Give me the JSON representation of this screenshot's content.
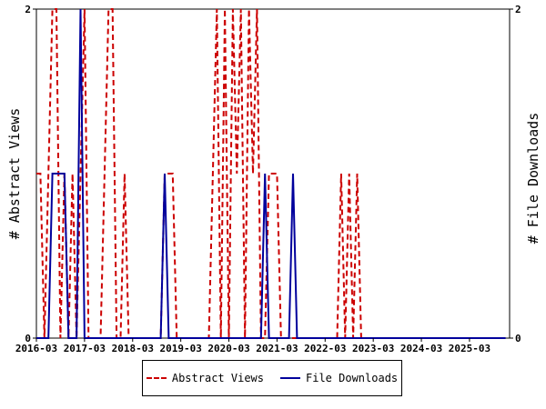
{
  "chart_data": {
    "type": "line",
    "y_left_label": "# Abstract Views",
    "y_right_label": "# File Downloads",
    "ylim": [
      0,
      2
    ],
    "y_ticks_left": [
      "0",
      "2"
    ],
    "y_ticks_right": [
      "0",
      "2"
    ],
    "x_tick_labels": [
      "2016-03",
      "2017-03",
      "2018-03",
      "2019-03",
      "2020-03",
      "2021-03",
      "2022-03",
      "2023-03",
      "2024-03",
      "2025-03"
    ],
    "x_range": [
      "2016-03",
      "2025-12"
    ],
    "grid": false,
    "legend_position": "bottom",
    "series": [
      {
        "name": "Abstract Views",
        "color": "#cc0000",
        "style": "dashed",
        "points": [
          [
            "2016-03",
            1
          ],
          [
            "2016-04",
            1
          ],
          [
            "2016-05",
            0
          ],
          [
            "2016-06",
            1
          ],
          [
            "2016-07",
            2
          ],
          [
            "2016-08",
            2
          ],
          [
            "2016-09",
            0
          ],
          [
            "2016-10",
            1
          ],
          [
            "2016-11",
            0
          ],
          [
            "2016-12",
            1
          ],
          [
            "2017-01",
            0
          ],
          [
            "2017-02",
            1
          ],
          [
            "2017-03",
            2
          ],
          [
            "2017-04",
            0
          ],
          [
            "2017-05",
            0
          ],
          [
            "2017-06",
            0
          ],
          [
            "2017-07",
            0
          ],
          [
            "2017-08",
            1
          ],
          [
            "2017-09",
            2
          ],
          [
            "2017-10",
            2
          ],
          [
            "2017-11",
            0
          ],
          [
            "2017-12",
            0
          ],
          [
            "2018-01",
            1
          ],
          [
            "2018-02",
            0
          ],
          [
            "2018-03",
            0
          ],
          [
            "2018-04",
            0
          ],
          [
            "2018-05",
            0
          ],
          [
            "2018-06",
            0
          ],
          [
            "2018-07",
            0
          ],
          [
            "2018-08",
            0
          ],
          [
            "2018-09",
            0
          ],
          [
            "2018-10",
            0
          ],
          [
            "2018-11",
            1
          ],
          [
            "2018-12",
            1
          ],
          [
            "2019-01",
            1
          ],
          [
            "2019-02",
            0
          ],
          [
            "2019-03",
            0
          ],
          [
            "2019-04",
            0
          ],
          [
            "2019-05",
            0
          ],
          [
            "2019-06",
            0
          ],
          [
            "2019-07",
            0
          ],
          [
            "2019-08",
            0
          ],
          [
            "2019-09",
            0
          ],
          [
            "2019-10",
            0
          ],
          [
            "2019-11",
            1
          ],
          [
            "2019-12",
            2
          ],
          [
            "2020-01",
            0
          ],
          [
            "2020-02",
            2
          ],
          [
            "2020-03",
            0
          ],
          [
            "2020-04",
            2
          ],
          [
            "2020-05",
            1
          ],
          [
            "2020-06",
            2
          ],
          [
            "2020-07",
            0
          ],
          [
            "2020-08",
            2
          ],
          [
            "2020-09",
            1
          ],
          [
            "2020-10",
            2
          ],
          [
            "2020-11",
            0
          ],
          [
            "2020-12",
            0
          ],
          [
            "2021-01",
            1
          ],
          [
            "2021-02",
            1
          ],
          [
            "2021-03",
            1
          ],
          [
            "2021-04",
            0
          ],
          [
            "2021-05",
            0
          ],
          [
            "2021-06",
            0
          ],
          [
            "2021-07",
            0
          ],
          [
            "2021-08",
            0
          ],
          [
            "2021-09",
            0
          ],
          [
            "2021-10",
            0
          ],
          [
            "2021-11",
            0
          ],
          [
            "2021-12",
            0
          ],
          [
            "2022-01",
            0
          ],
          [
            "2022-02",
            0
          ],
          [
            "2022-03",
            0
          ],
          [
            "2022-04",
            0
          ],
          [
            "2022-05",
            0
          ],
          [
            "2022-06",
            0
          ],
          [
            "2022-07",
            1
          ],
          [
            "2022-08",
            0
          ],
          [
            "2022-09",
            1
          ],
          [
            "2022-10",
            0
          ],
          [
            "2022-11",
            1
          ],
          [
            "2022-12",
            0
          ],
          [
            "2023-01",
            0
          ]
        ]
      },
      {
        "name": "File Downloads",
        "color": "#00009c",
        "style": "solid",
        "points": [
          [
            "2016-03",
            0
          ],
          [
            "2016-04",
            0
          ],
          [
            "2016-05",
            0
          ],
          [
            "2016-06",
            0
          ],
          [
            "2016-07",
            1
          ],
          [
            "2016-08",
            1
          ],
          [
            "2016-09",
            1
          ],
          [
            "2016-10",
            1
          ],
          [
            "2016-11",
            0
          ],
          [
            "2016-12",
            0
          ],
          [
            "2017-01",
            0
          ],
          [
            "2017-02",
            2
          ],
          [
            "2017-03",
            0
          ],
          [
            "2017-04",
            0
          ],
          [
            "2017-05",
            0
          ],
          [
            "2017-06",
            0
          ],
          [
            "2017-07",
            0
          ],
          [
            "2017-08",
            0
          ],
          [
            "2017-09",
            0
          ],
          [
            "2017-10",
            0
          ],
          [
            "2017-11",
            0
          ],
          [
            "2017-12",
            0
          ],
          [
            "2018-01",
            0
          ],
          [
            "2018-02",
            0
          ],
          [
            "2018-03",
            0
          ],
          [
            "2018-04",
            0
          ],
          [
            "2018-05",
            0
          ],
          [
            "2018-06",
            0
          ],
          [
            "2018-07",
            0
          ],
          [
            "2018-08",
            0
          ],
          [
            "2018-09",
            0
          ],
          [
            "2018-10",
            0
          ],
          [
            "2018-11",
            1
          ],
          [
            "2018-12",
            0
          ],
          [
            "2019-01",
            0
          ],
          [
            "2019-02",
            0
          ],
          [
            "2019-03",
            0
          ],
          [
            "2019-04",
            0
          ],
          [
            "2019-05",
            0
          ],
          [
            "2019-06",
            0
          ],
          [
            "2019-07",
            0
          ],
          [
            "2019-08",
            0
          ],
          [
            "2019-09",
            0
          ],
          [
            "2019-10",
            0
          ],
          [
            "2019-11",
            0
          ],
          [
            "2019-12",
            0
          ],
          [
            "2020-01",
            0
          ],
          [
            "2020-02",
            0
          ],
          [
            "2020-03",
            0
          ],
          [
            "2020-04",
            0
          ],
          [
            "2020-05",
            0
          ],
          [
            "2020-06",
            0
          ],
          [
            "2020-07",
            0
          ],
          [
            "2020-08",
            0
          ],
          [
            "2020-09",
            0
          ],
          [
            "2020-10",
            0
          ],
          [
            "2020-11",
            0
          ],
          [
            "2020-12",
            1
          ],
          [
            "2021-01",
            0
          ],
          [
            "2021-02",
            0
          ],
          [
            "2021-03",
            0
          ],
          [
            "2021-04",
            0
          ],
          [
            "2021-05",
            0
          ],
          [
            "2021-06",
            0
          ],
          [
            "2021-07",
            1
          ],
          [
            "2021-08",
            0
          ],
          [
            "2021-09",
            0
          ],
          [
            "2021-10",
            0
          ],
          [
            "2021-11",
            0
          ],
          [
            "2021-12",
            0
          ],
          [
            "2022-01",
            0
          ],
          [
            "2022-02",
            0
          ],
          [
            "2022-03",
            0
          ],
          [
            "2025-12",
            0
          ]
        ]
      }
    ]
  },
  "legend": {
    "views_label": "Abstract Views",
    "downloads_label": "File Downloads"
  }
}
